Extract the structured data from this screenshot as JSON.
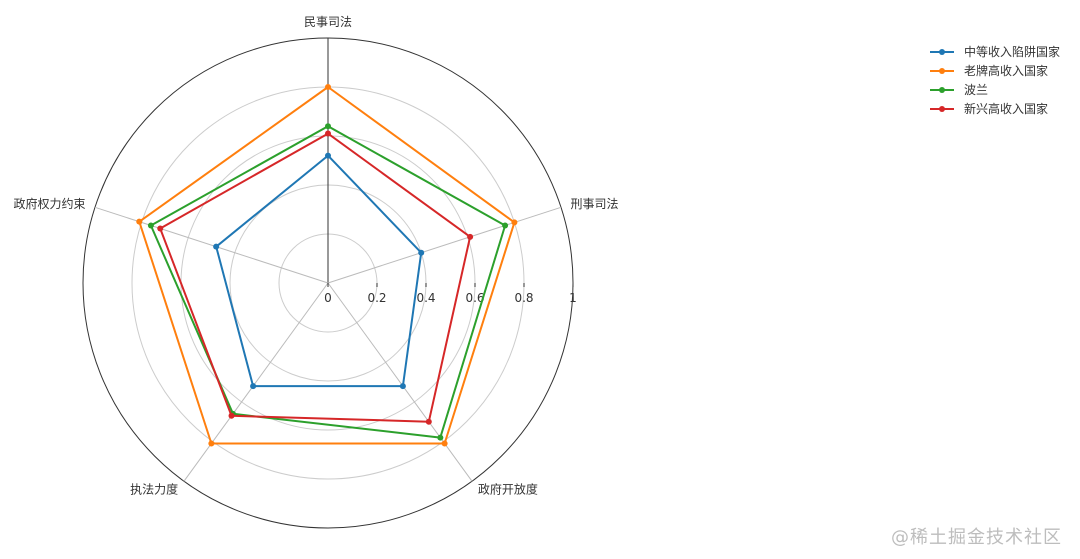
{
  "chart_data": {
    "type": "radar",
    "axes": [
      "民事司法",
      "刑事司法",
      "政府开放度",
      "执法力度",
      "政府权力约束"
    ],
    "rlim": [
      0,
      1
    ],
    "ticks": [
      "0",
      "0.2",
      "0.4",
      "0.6",
      "0.8",
      "1"
    ],
    "tick_values": [
      0,
      0.2,
      0.4,
      0.6,
      0.8,
      1
    ],
    "grid": true,
    "legend_position": "top-right",
    "series": [
      {
        "name": "中等收入陷阱国家",
        "color": "#1f77b4",
        "values": [
          0.52,
          0.4,
          0.52,
          0.52,
          0.48
        ]
      },
      {
        "name": "老牌高收入国家",
        "color": "#ff7f0e",
        "values": [
          0.8,
          0.8,
          0.81,
          0.81,
          0.81
        ]
      },
      {
        "name": "波兰",
        "color": "#2ca02c",
        "values": [
          0.64,
          0.76,
          0.78,
          0.66,
          0.76
        ]
      },
      {
        "name": "新兴高收入国家",
        "color": "#d62728",
        "values": [
          0.61,
          0.61,
          0.7,
          0.67,
          0.72
        ]
      }
    ]
  },
  "watermark": "@稀土掘金技术社区"
}
